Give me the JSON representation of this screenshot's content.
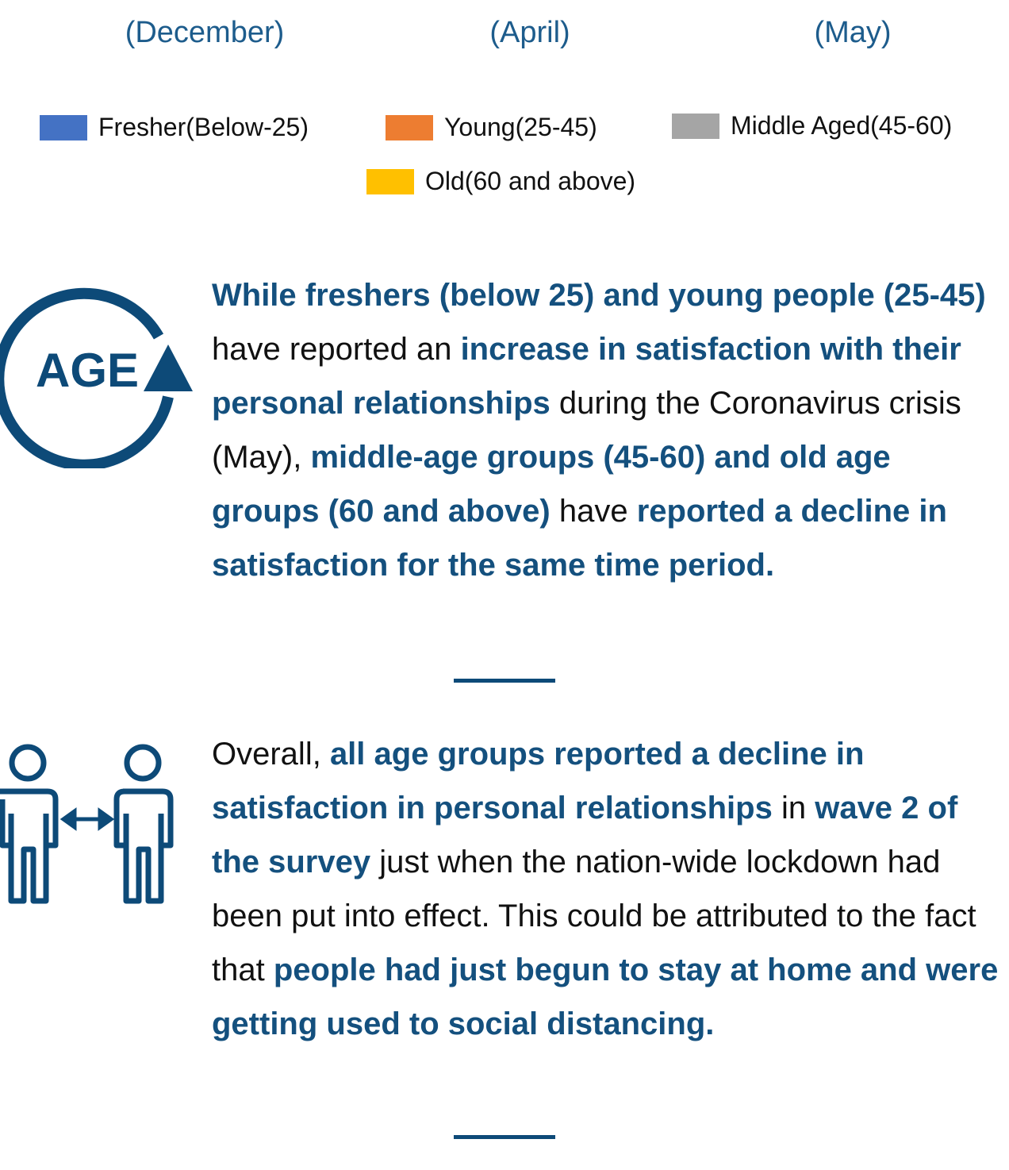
{
  "columns": [
    "(December)",
    "(April)",
    "(May)"
  ],
  "legend": [
    {
      "label": "Fresher(Below-25)",
      "color": "#4472c4"
    },
    {
      "label": "Young(25-45)",
      "color": "#ed7d31"
    },
    {
      "label": "Middle Aged(45-60)",
      "color": "#a5a5a5"
    },
    {
      "label": "Old(60 and above)",
      "color": "#ffc000"
    }
  ],
  "sections": [
    {
      "icon_label": "AGE",
      "text": [
        {
          "text": "While freshers (below 25) and young people (25-45)",
          "emphasis": true
        },
        {
          "text": " have reported an ",
          "emphasis": false
        },
        {
          "text": "increase in satisfaction with their personal relationships",
          "emphasis": true
        },
        {
          "text": " during the Coronavirus crisis (May), ",
          "emphasis": false
        },
        {
          "text": "middle-age groups (45-60) and old age groups (60 and above)",
          "emphasis": true
        },
        {
          "text": " have ",
          "emphasis": false
        },
        {
          "text": "reported a decline in satisfaction for the same time period.",
          "emphasis": true
        }
      ]
    },
    {
      "text": [
        {
          "text": "Overall, ",
          "emphasis": false
        },
        {
          "text": "all age groups reported a decline in satisfaction in personal relationships",
          "emphasis": true
        },
        {
          "text": " in ",
          "emphasis": false
        },
        {
          "text": "wave 2 of the survey",
          "emphasis": true
        },
        {
          "text": " just when the nation-wide lockdown had been put into effect. This could be attributed to the fact that ",
          "emphasis": false
        },
        {
          "text": "people had just begun to stay at home and were getting used to social distancing.",
          "emphasis": true
        }
      ]
    }
  ]
}
